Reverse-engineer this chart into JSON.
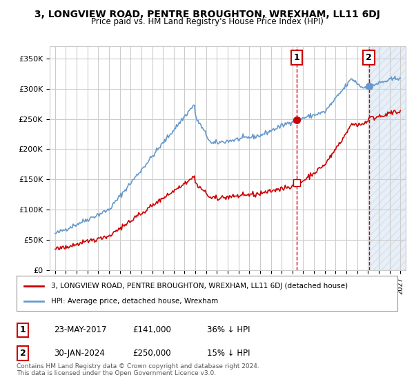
{
  "title": "3, LONGVIEW ROAD, PENTRE BROUGHTON, WREXHAM, LL11 6DJ",
  "subtitle": "Price paid vs. HM Land Registry's House Price Index (HPI)",
  "legend_line1": "3, LONGVIEW ROAD, PENTRE BROUGHTON, WREXHAM, LL11 6DJ (detached house)",
  "legend_line2": "HPI: Average price, detached house, Wrexham",
  "sale1_label": "1",
  "sale1_date": "23-MAY-2017",
  "sale1_price": "£141,000",
  "sale1_hpi": "36% ↓ HPI",
  "sale1_x": 2017.38,
  "sale1_y": 141000,
  "sale2_label": "2",
  "sale2_date": "30-JAN-2024",
  "sale2_price": "£250,000",
  "sale2_hpi": "15% ↓ HPI",
  "sale2_x": 2024.08,
  "sale2_y": 250000,
  "ylim": [
    0,
    370000
  ],
  "xlim": [
    1994.5,
    2027.5
  ],
  "yticks": [
    0,
    50000,
    100000,
    150000,
    200000,
    250000,
    300000,
    350000
  ],
  "xticks": [
    1995,
    1996,
    1997,
    1998,
    1999,
    2000,
    2001,
    2002,
    2003,
    2004,
    2005,
    2006,
    2007,
    2008,
    2009,
    2010,
    2011,
    2012,
    2013,
    2014,
    2015,
    2016,
    2017,
    2018,
    2019,
    2020,
    2021,
    2022,
    2023,
    2024,
    2025,
    2026,
    2027
  ],
  "hpi_color": "#6699cc",
  "price_color": "#cc0000",
  "dashed_color": "#cc0000",
  "background_color": "#ffffff",
  "grid_color": "#cccccc",
  "footnote": "Contains HM Land Registry data © Crown copyright and database right 2024.\nThis data is licensed under the Open Government Licence v3.0."
}
